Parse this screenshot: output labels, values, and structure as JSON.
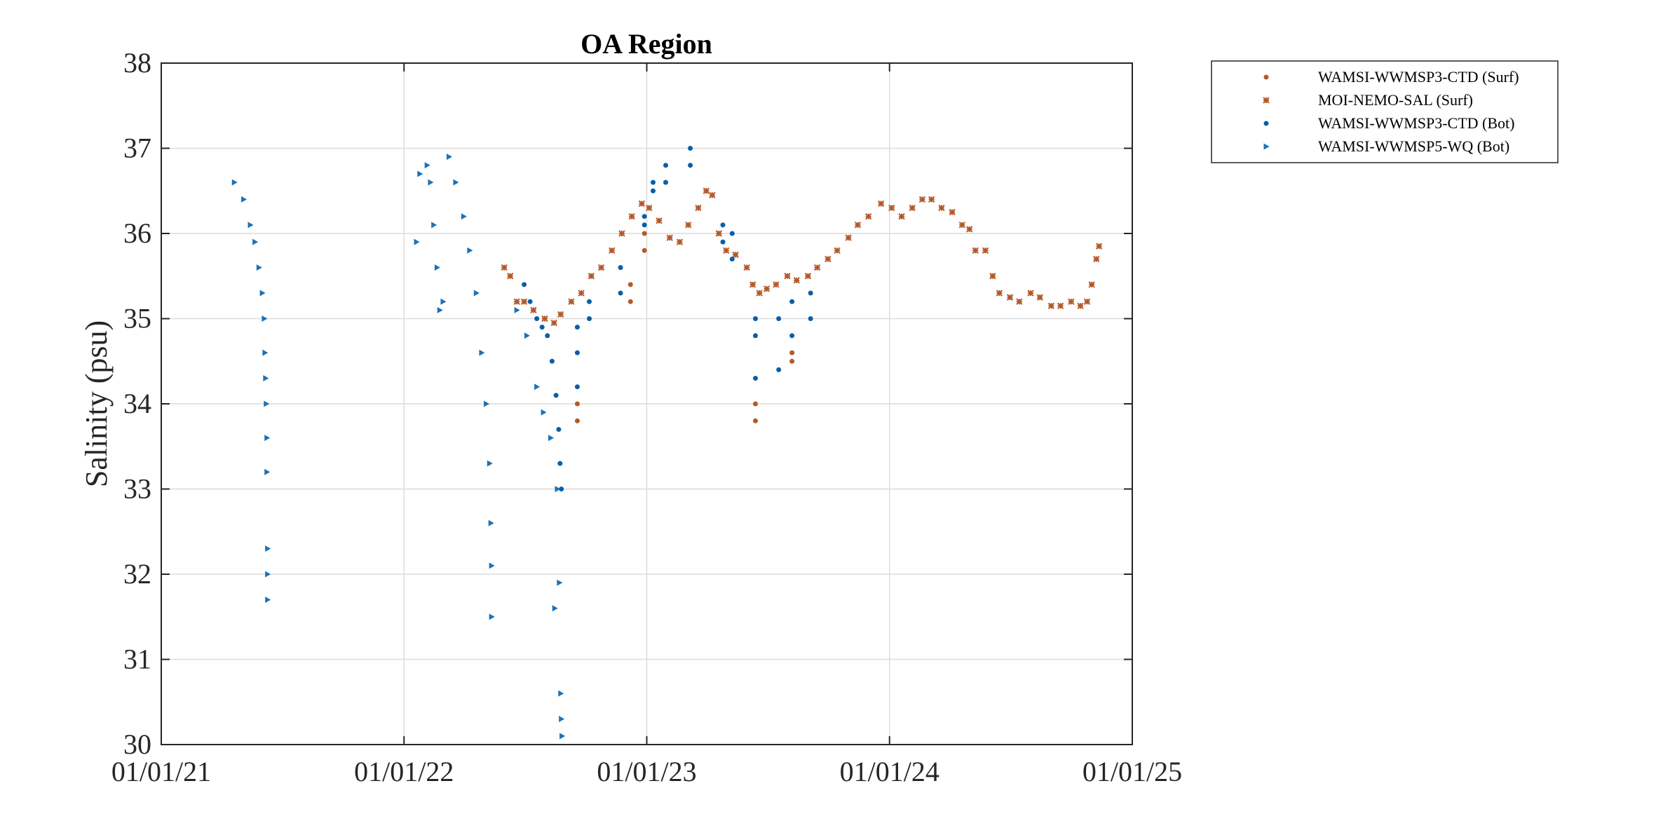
{
  "chart_data": {
    "type": "scatter",
    "title": "OA Region",
    "xlabel": "",
    "ylabel": "Salinity (psu)",
    "x_axis_type": "date",
    "xlim": [
      "2021-01-01",
      "2025-01-01"
    ],
    "ylim": [
      30,
      38
    ],
    "x_ticks": [
      "01/01/21",
      "01/01/22",
      "01/01/23",
      "01/01/24",
      "01/01/25"
    ],
    "y_ticks": [
      30,
      31,
      32,
      33,
      34,
      35,
      36,
      37,
      38
    ],
    "grid": true,
    "legend_position": "outside-top-right",
    "series": [
      {
        "name": "WAMSI-WWMSP3-CTD (Surf)",
        "marker": "dot",
        "color": "#b35a2a",
        "points": [
          [
            "2022-09-19",
            33.8
          ],
          [
            "2022-09-19",
            34.0
          ],
          [
            "2022-12-08",
            35.2
          ],
          [
            "2022-12-08",
            35.4
          ],
          [
            "2022-12-29",
            35.8
          ],
          [
            "2022-12-29",
            36.0
          ],
          [
            "2023-06-14",
            33.8
          ],
          [
            "2023-06-14",
            34.0
          ],
          [
            "2023-08-08",
            34.5
          ],
          [
            "2023-08-08",
            34.6
          ]
        ]
      },
      {
        "name": "MOI-NEMO-SAL (Surf)",
        "marker": "star",
        "color": "#b35a2a",
        "points": [
          [
            "2022-06-01",
            35.6
          ],
          [
            "2022-06-10",
            35.5
          ],
          [
            "2022-06-20",
            35.2
          ],
          [
            "2022-07-01",
            35.2
          ],
          [
            "2022-07-15",
            35.1
          ],
          [
            "2022-08-01",
            35.0
          ],
          [
            "2022-08-15",
            34.95
          ],
          [
            "2022-08-25",
            35.05
          ],
          [
            "2022-09-10",
            35.2
          ],
          [
            "2022-09-25",
            35.3
          ],
          [
            "2022-10-10",
            35.5
          ],
          [
            "2022-10-25",
            35.6
          ],
          [
            "2022-11-10",
            35.8
          ],
          [
            "2022-11-25",
            36.0
          ],
          [
            "2022-12-10",
            36.2
          ],
          [
            "2022-12-25",
            36.35
          ],
          [
            "2023-01-05",
            36.3
          ],
          [
            "2023-01-20",
            36.15
          ],
          [
            "2023-02-05",
            35.95
          ],
          [
            "2023-02-20",
            35.9
          ],
          [
            "2023-03-05",
            36.1
          ],
          [
            "2023-03-20",
            36.3
          ],
          [
            "2023-04-01",
            36.5
          ],
          [
            "2023-04-10",
            36.45
          ],
          [
            "2023-04-20",
            36.0
          ],
          [
            "2023-05-01",
            35.8
          ],
          [
            "2023-05-15",
            35.75
          ],
          [
            "2023-06-01",
            35.6
          ],
          [
            "2023-06-10",
            35.4
          ],
          [
            "2023-06-20",
            35.3
          ],
          [
            "2023-07-01",
            35.35
          ],
          [
            "2023-07-15",
            35.4
          ],
          [
            "2023-08-01",
            35.5
          ],
          [
            "2023-08-15",
            35.45
          ],
          [
            "2023-09-01",
            35.5
          ],
          [
            "2023-09-15",
            35.6
          ],
          [
            "2023-10-01",
            35.7
          ],
          [
            "2023-10-15",
            35.8
          ],
          [
            "2023-11-01",
            35.95
          ],
          [
            "2023-11-15",
            36.1
          ],
          [
            "2023-12-01",
            36.2
          ],
          [
            "2023-12-20",
            36.35
          ],
          [
            "2024-01-05",
            36.3
          ],
          [
            "2024-01-20",
            36.2
          ],
          [
            "2024-02-05",
            36.3
          ],
          [
            "2024-02-20",
            36.4
          ],
          [
            "2024-03-05",
            36.4
          ],
          [
            "2024-03-20",
            36.3
          ],
          [
            "2024-04-05",
            36.25
          ],
          [
            "2024-04-20",
            36.1
          ],
          [
            "2024-05-01",
            36.05
          ],
          [
            "2024-05-10",
            35.8
          ],
          [
            "2024-05-25",
            35.8
          ],
          [
            "2024-06-05",
            35.5
          ],
          [
            "2024-06-15",
            35.3
          ],
          [
            "2024-07-01",
            35.25
          ],
          [
            "2024-07-15",
            35.2
          ],
          [
            "2024-08-01",
            35.3
          ],
          [
            "2024-08-15",
            35.25
          ],
          [
            "2024-09-01",
            35.15
          ],
          [
            "2024-09-15",
            35.15
          ],
          [
            "2024-10-01",
            35.2
          ],
          [
            "2024-10-15",
            35.15
          ],
          [
            "2024-10-25",
            35.2
          ],
          [
            "2024-11-01",
            35.4
          ],
          [
            "2024-11-08",
            35.7
          ],
          [
            "2024-11-12",
            35.85
          ]
        ]
      },
      {
        "name": "WAMSI-WWMSP3-CTD (Bot)",
        "marker": "dot",
        "color": "#0a5ea8",
        "points": [
          [
            "2022-07-01",
            35.4
          ],
          [
            "2022-07-10",
            35.2
          ],
          [
            "2022-07-20",
            35.0
          ],
          [
            "2022-07-28",
            34.9
          ],
          [
            "2022-08-05",
            34.8
          ],
          [
            "2022-08-12",
            34.5
          ],
          [
            "2022-08-18",
            34.1
          ],
          [
            "2022-08-22",
            33.7
          ],
          [
            "2022-08-24",
            33.3
          ],
          [
            "2022-08-26",
            33.0
          ],
          [
            "2022-09-19",
            34.2
          ],
          [
            "2022-09-19",
            34.6
          ],
          [
            "2022-09-19",
            34.9
          ],
          [
            "2022-10-07",
            35.0
          ],
          [
            "2022-10-07",
            35.2
          ],
          [
            "2022-11-23",
            35.3
          ],
          [
            "2022-11-23",
            35.6
          ],
          [
            "2022-12-29",
            36.1
          ],
          [
            "2022-12-29",
            36.2
          ],
          [
            "2023-01-11",
            36.5
          ],
          [
            "2023-01-11",
            36.6
          ],
          [
            "2023-01-30",
            36.6
          ],
          [
            "2023-01-30",
            36.8
          ],
          [
            "2023-03-08",
            36.8
          ],
          [
            "2023-03-08",
            37.0
          ],
          [
            "2023-04-26",
            35.9
          ],
          [
            "2023-04-26",
            36.1
          ],
          [
            "2023-05-10",
            35.7
          ],
          [
            "2023-05-10",
            36.0
          ],
          [
            "2023-06-14",
            34.3
          ],
          [
            "2023-06-14",
            34.8
          ],
          [
            "2023-06-14",
            35.0
          ],
          [
            "2023-07-19",
            34.4
          ],
          [
            "2023-07-19",
            35.0
          ],
          [
            "2023-08-08",
            34.8
          ],
          [
            "2023-08-08",
            35.2
          ],
          [
            "2023-09-05",
            35.0
          ],
          [
            "2023-09-05",
            35.3
          ]
        ]
      },
      {
        "name": "WAMSI-WWMSP5-WQ (Bot)",
        "marker": "triangle-right",
        "color": "#1b72b8",
        "points": [
          [
            "2021-04-21",
            36.6
          ],
          [
            "2021-05-05",
            36.4
          ],
          [
            "2021-05-15",
            36.1
          ],
          [
            "2021-05-22",
            35.9
          ],
          [
            "2021-05-28",
            35.6
          ],
          [
            "2021-06-02",
            35.3
          ],
          [
            "2021-06-05",
            35.0
          ],
          [
            "2021-06-06",
            34.6
          ],
          [
            "2021-06-07",
            34.3
          ],
          [
            "2021-06-08",
            34.0
          ],
          [
            "2021-06-09",
            33.6
          ],
          [
            "2021-06-09",
            33.2
          ],
          [
            "2021-06-10",
            32.3
          ],
          [
            "2021-06-10",
            32.0
          ],
          [
            "2021-06-10",
            31.7
          ],
          [
            "2022-01-25",
            36.7
          ],
          [
            "2022-02-05",
            36.8
          ],
          [
            "2022-02-10",
            36.6
          ],
          [
            "2022-02-15",
            36.1
          ],
          [
            "2022-02-20",
            35.6
          ],
          [
            "2022-02-24",
            35.1
          ],
          [
            "2022-03-10",
            36.9
          ],
          [
            "2022-03-20",
            36.6
          ],
          [
            "2022-04-01",
            36.2
          ],
          [
            "2022-04-10",
            35.8
          ],
          [
            "2022-04-20",
            35.3
          ],
          [
            "2022-04-28",
            34.6
          ],
          [
            "2022-05-05",
            34.0
          ],
          [
            "2022-05-10",
            33.3
          ],
          [
            "2022-05-12",
            32.6
          ],
          [
            "2022-05-13",
            32.1
          ],
          [
            "2022-05-13",
            31.5
          ],
          [
            "2022-06-20",
            35.1
          ],
          [
            "2022-07-05",
            34.8
          ],
          [
            "2022-07-20",
            34.2
          ],
          [
            "2022-07-30",
            33.9
          ],
          [
            "2022-08-10",
            33.6
          ],
          [
            "2022-08-20",
            33.0
          ],
          [
            "2022-08-16",
            31.6
          ],
          [
            "2022-08-23",
            31.9
          ],
          [
            "2022-08-25",
            30.6
          ],
          [
            "2022-08-26",
            30.3
          ],
          [
            "2022-08-27",
            30.1
          ],
          [
            "2022-01-20",
            35.9
          ],
          [
            "2022-03-01",
            35.2
          ]
        ]
      }
    ]
  }
}
